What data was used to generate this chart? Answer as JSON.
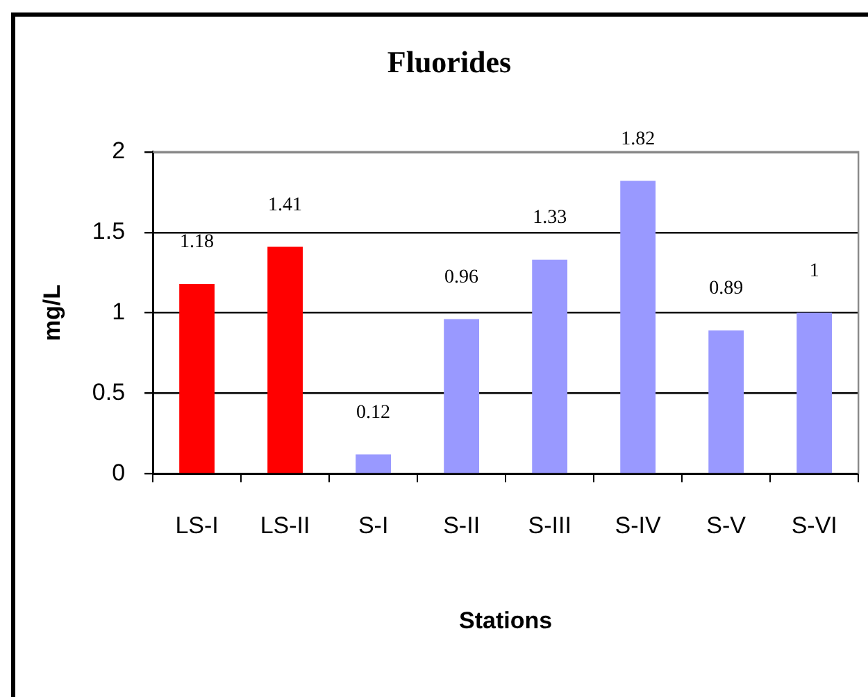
{
  "chart_data": {
    "type": "bar",
    "title": "Fluorides",
    "xlabel": "Stations",
    "ylabel": "mg/L",
    "categories": [
      "LS-I",
      "LS-II",
      "S-I",
      "S-II",
      "S-III",
      "S-IV",
      "S-V",
      "S-VI"
    ],
    "values": [
      1.18,
      1.41,
      0.12,
      0.96,
      1.33,
      1.82,
      0.89,
      1
    ],
    "colors": [
      "#ff0000",
      "#ff0000",
      "#9999ff",
      "#9999ff",
      "#9999ff",
      "#9999ff",
      "#9999ff",
      "#9999ff"
    ],
    "ylim": [
      0,
      2
    ],
    "yticks": [
      0,
      0.5,
      1,
      1.5,
      2
    ],
    "grid": "y",
    "data_labels": true,
    "legend": false
  }
}
